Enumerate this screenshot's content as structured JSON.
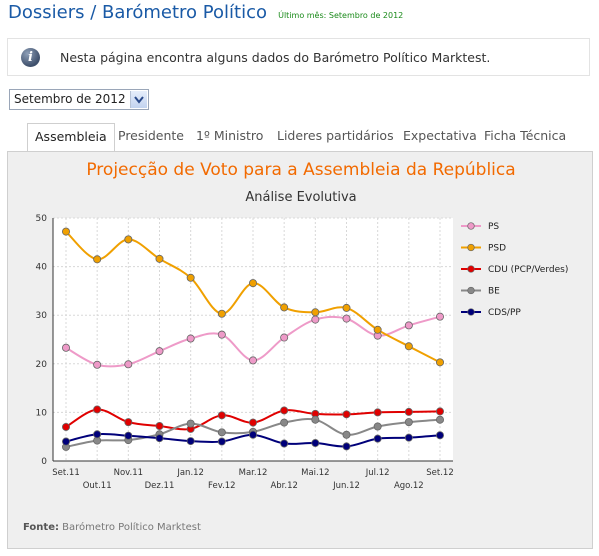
{
  "header": {
    "title": "Dossiers / Barómetro Político",
    "last_month": "Último mês: Setembro de 2012"
  },
  "info": {
    "text": "Nesta página encontra alguns dados do Barómetro Político Marktest.",
    "icon": "info-icon"
  },
  "month_select": {
    "value": "Setembro de 2012"
  },
  "tabs": [
    {
      "label": "Assembleia",
      "active": true
    },
    {
      "label": "Presidente",
      "active": false
    },
    {
      "label": "1º Ministro",
      "active": false
    },
    {
      "label": "Lideres partidários",
      "active": false
    },
    {
      "label": "Expectativa",
      "active": false
    },
    {
      "label": "Ficha Técnica",
      "active": false
    }
  ],
  "chart_data": {
    "type": "line",
    "title": "Projecção de Voto para a Assembleia da República",
    "subtitle": "Análise Evolutiva",
    "categories": [
      "Set.11",
      "Out.11",
      "Nov.11",
      "Dez.11",
      "Jan.12",
      "Fev.12",
      "Mar.12",
      "Abr.12",
      "Mai.12",
      "Jun.12",
      "Jul.12",
      "Ago.12",
      "Set.12"
    ],
    "ylim": [
      0,
      50
    ],
    "yticks": [
      0,
      10,
      20,
      30,
      40,
      50
    ],
    "grid": true,
    "legend_position": "right",
    "series": [
      {
        "name": "PS",
        "color": "#ee9ac8",
        "values": [
          23.3,
          19.8,
          19.9,
          22.6,
          25.2,
          26.0,
          20.7,
          25.4,
          29.1,
          29.3,
          25.8,
          27.9,
          29.7
        ]
      },
      {
        "name": "PSD",
        "color": "#f0a000",
        "values": [
          47.2,
          41.5,
          45.6,
          41.6,
          37.7,
          30.3,
          36.6,
          31.6,
          30.6,
          31.5,
          27.0,
          23.6,
          20.3
        ]
      },
      {
        "name": "CDU (PCP/Verdes)",
        "color": "#e00000",
        "values": [
          7.0,
          10.6,
          8.0,
          7.2,
          6.6,
          9.4,
          7.9,
          10.4,
          9.7,
          9.6,
          10.0,
          10.1,
          10.2
        ]
      },
      {
        "name": "BE",
        "color": "#888888",
        "values": [
          2.9,
          4.2,
          4.3,
          5.5,
          7.7,
          5.9,
          6.0,
          7.9,
          8.5,
          5.4,
          7.1,
          8.0,
          8.5
        ]
      },
      {
        "name": "CDS/PP",
        "color": "#00007a",
        "values": [
          4.0,
          5.5,
          5.2,
          4.7,
          4.1,
          4.0,
          5.4,
          3.6,
          3.7,
          3.0,
          4.6,
          4.8,
          5.3
        ]
      }
    ],
    "source_label": "Fonte:",
    "source": "Barómetro Político Marktest"
  }
}
